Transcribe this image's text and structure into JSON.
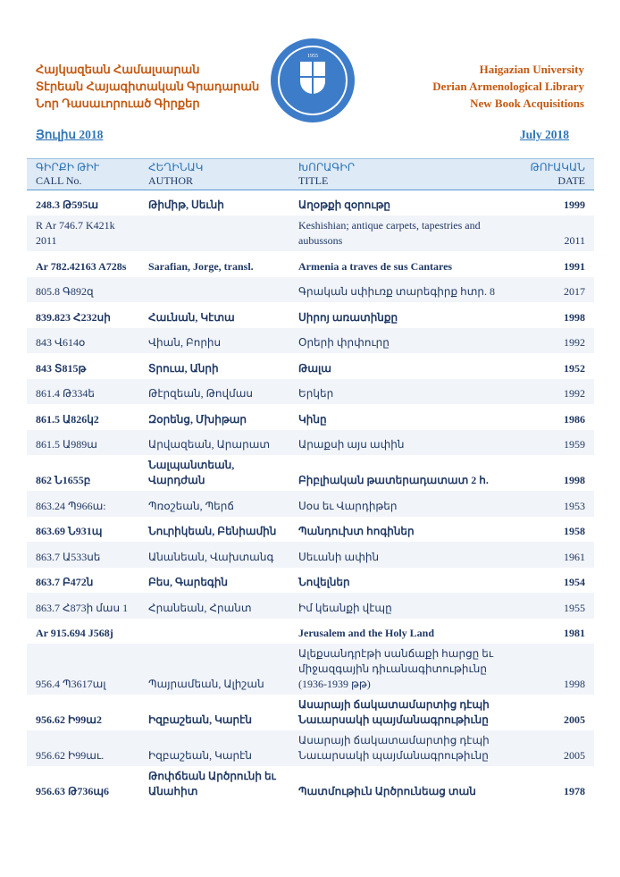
{
  "header": {
    "left_lines": [
      "Հայկազեան Համալսարան",
      "Տէրեան Հայագիտական Գրադարան",
      "Նոր Դասաւորուած Գիրքեր"
    ],
    "right_lines": [
      "Haigazian University",
      "Derian Armenological Library",
      "New Book Acquisitions"
    ],
    "logo_text": "HAIGAZIAN UNIVERSITY 1955",
    "logo_year": "1955",
    "month_armenian": "Յուլիս 2018",
    "month_english": "July 2018"
  },
  "colors": {
    "header_text": "#c45911",
    "body_text": "#1f3864",
    "month": "#2e74b5",
    "header_bg": "#deeaf6",
    "logo": "#3d7cc9"
  },
  "table": {
    "columns": [
      {
        "armenian": "ԳԻՐՔԻ ԹԻՒ",
        "english": "CALL No."
      },
      {
        "armenian": "ՀԵՂԻՆԱԿ",
        "english": "AUTHOR"
      },
      {
        "armenian": "ԽՈՐԱԳԻՐ",
        "english": "TITLE"
      },
      {
        "armenian": "ԹՈՒԱԿԱՆ",
        "english": "DATE"
      }
    ],
    "rows": [
      {
        "call": "248.3 Թ595ա",
        "author": "Թիմիթ, Սեւնի",
        "title": "Աղօթքի զօրութը",
        "date": "1999",
        "bold": true
      },
      {
        "call": "R Ar 746.7 K421k 2011",
        "author": "",
        "title": "Keshishian; antique carpets, tapestries and aubussons",
        "date": "2011",
        "bold": false
      },
      {
        "call": "Ar 782.42163 A728s",
        "author": "Sarafian, Jorge, transl.",
        "title": "Armenia a traves de sus Cantares",
        "date": "1991",
        "bold": true
      },
      {
        "call": "805.8 Գ892զ",
        "author": "",
        "title": "Գրական սփիւռք տարեգիրք հտր. 8",
        "date": "2017",
        "bold": false
      },
      {
        "call": "839.823 Հ232սի",
        "author": "Հաւնան, Կէտա",
        "title": "Սիրոյ առատինքը",
        "date": "1998",
        "bold": true
      },
      {
        "call": "843 Վ614օ",
        "author": "Վիան, Բորիս",
        "title": "Օրերի փրփուրը",
        "date": "1992",
        "bold": false
      },
      {
        "call": "843 Տ815թ",
        "author": "Տրուա, Անրի",
        "title": "Թալա",
        "date": "1952",
        "bold": true
      },
      {
        "call": "861.4 Թ334ե",
        "author": "Թէրզեան, Թովմաս",
        "title": "Երկեր",
        "date": "1992",
        "bold": false
      },
      {
        "call": "861.5 Ա826կ2",
        "author": "Զօրենց, Մխիթար",
        "title": "Կինը",
        "date": "1986",
        "bold": true
      },
      {
        "call": "861.5 Ա989ա",
        "author": "Արվազեան, Արարատ",
        "title": "Արաքսի այս ափին",
        "date": "1959",
        "bold": false
      },
      {
        "call": "862 Ն1655բ",
        "author": "Նալպանտեան, Վարդժան",
        "title": "Բիբլիական թատերադատատ 2 հ.",
        "date": "1998",
        "bold": true
      },
      {
        "call": "863.24 Պ966ա:",
        "author": "Պռօշեան, Պերճ",
        "title": "Սօս եւ Վարդիթեր",
        "date": "1953",
        "bold": false
      },
      {
        "call": "863.69 Ն931պ",
        "author": "Նուրիկեան, Բենիամին",
        "title": "Պանդուխտ հոգիներ",
        "date": "1958",
        "bold": true
      },
      {
        "call": "863.7 Ա533սե",
        "author": "Անանեան, Վախտանգ",
        "title": "Սեւանի ափին",
        "date": "1961",
        "bold": false
      },
      {
        "call": "863.7 Բ472ն",
        "author": "Բես, Գարեգին",
        "title": "Նովելներ",
        "date": "1954",
        "bold": true
      },
      {
        "call": "863.7 Հ873ի մաս 1",
        "author": "Հրանեան, Հրանտ",
        "title": "Իմ կեանքի վէպը",
        "date": "1955",
        "bold": false
      },
      {
        "call": "Ar 915.694 J568j",
        "author": "",
        "title": "Jerusalem and the Holy Land",
        "date": "1981",
        "bold": true
      },
      {
        "call": "956.4 Պ3617ալ",
        "author": "Պայրամեան, Ալիշան",
        "title": "Ալեքսանդրէթի սանճաքի հարցը եւ միջազգային դիւանագիտութիւնը (1936-1939 թթ)",
        "date": "1998",
        "bold": false
      },
      {
        "call": "956.62 Ի99ա2",
        "author": "Իզբաշեան, Կարէն",
        "title": "Ասարայի ճակատամարտից դէպի Նաւարսակի պայմանագրութիւնը",
        "date": "2005",
        "bold": true
      },
      {
        "call": "956.62 Ի99աւ.",
        "author": "Իզբաշեան, Կարէն",
        "title": "Ասարայի ճակատամարտից դէպի Նաւարսակի պայմանագրութիւնը",
        "date": "2005",
        "bold": false
      },
      {
        "call": "956.63 Թ736պ6",
        "author": "Թոփճեան Արծրունի եւ Անահիտ",
        "title": "Պատմութիւն Արծրունեաց տան",
        "date": "1978",
        "bold": true
      }
    ]
  }
}
